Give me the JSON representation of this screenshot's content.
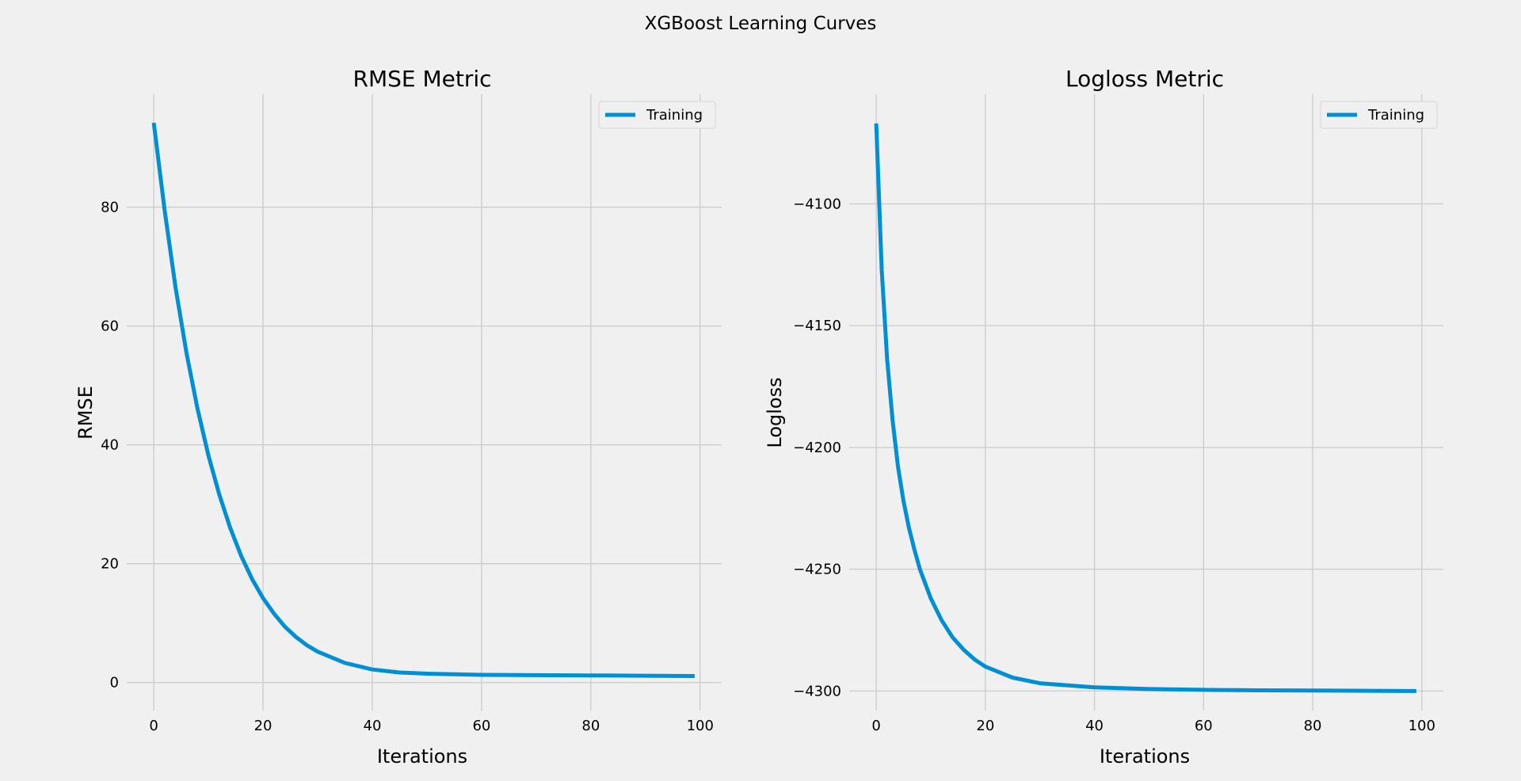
{
  "figure_title": "XGBoost Learning Curves",
  "colors": {
    "background": "#f0f0f0",
    "grid": "#cbcbcb",
    "series": "#008fd5"
  },
  "chart_data": [
    {
      "type": "line",
      "title": "RMSE Metric",
      "xlabel": "Iterations",
      "ylabel": "RMSE",
      "xlim": [
        -4.95,
        103.95
      ],
      "ylim": [
        -4.7,
        99.0
      ],
      "xticks": [
        0,
        20,
        40,
        60,
        80,
        100
      ],
      "yticks": [
        0,
        20,
        40,
        60,
        80
      ],
      "ytick_labels": [
        "0",
        "20",
        "40",
        "60",
        "80"
      ],
      "grid": true,
      "legend": "top-right",
      "x": [
        0,
        2,
        4,
        6,
        8,
        10,
        12,
        14,
        16,
        18,
        20,
        22,
        24,
        26,
        28,
        30,
        35,
        40,
        45,
        50,
        60,
        70,
        80,
        90,
        99
      ],
      "series": [
        {
          "name": "Training",
          "color": "#008fd5",
          "values": [
            94.2,
            79.4,
            66.4,
            55.4,
            46.1,
            38.2,
            31.6,
            26.0,
            21.3,
            17.4,
            14.2,
            11.6,
            9.4,
            7.7,
            6.3,
            5.2,
            3.3,
            2.2,
            1.7,
            1.5,
            1.3,
            1.25,
            1.2,
            1.15,
            1.1
          ]
        }
      ]
    },
    {
      "type": "line",
      "title": "Logloss Metric",
      "xlabel": "Iterations",
      "ylabel": "Logloss",
      "xlim": [
        -4.95,
        103.95
      ],
      "ylim": [
        -4308,
        -4055
      ],
      "xticks": [
        0,
        20,
        40,
        60,
        80,
        100
      ],
      "yticks": [
        -4100,
        -4150,
        -4200,
        -4250,
        -4300
      ],
      "ytick_labels": [
        "−4100",
        "−4150",
        "−4200",
        "−4250",
        "−4300"
      ],
      "grid": true,
      "legend": "top-right",
      "x": [
        0,
        1,
        2,
        3,
        4,
        5,
        6,
        7,
        8,
        10,
        12,
        14,
        16,
        18,
        20,
        25,
        30,
        40,
        50,
        60,
        70,
        80,
        90,
        99
      ],
      "series": [
        {
          "name": "Training",
          "color": "#008fd5",
          "values": [
            -4067,
            -4127,
            -4164,
            -4189,
            -4208,
            -4222,
            -4233,
            -4242,
            -4250,
            -4262,
            -4271,
            -4278,
            -4283,
            -4287,
            -4290,
            -4294.5,
            -4296.8,
            -4298.5,
            -4299.2,
            -4299.5,
            -4299.7,
            -4299.8,
            -4299.9,
            -4300
          ]
        }
      ]
    }
  ]
}
